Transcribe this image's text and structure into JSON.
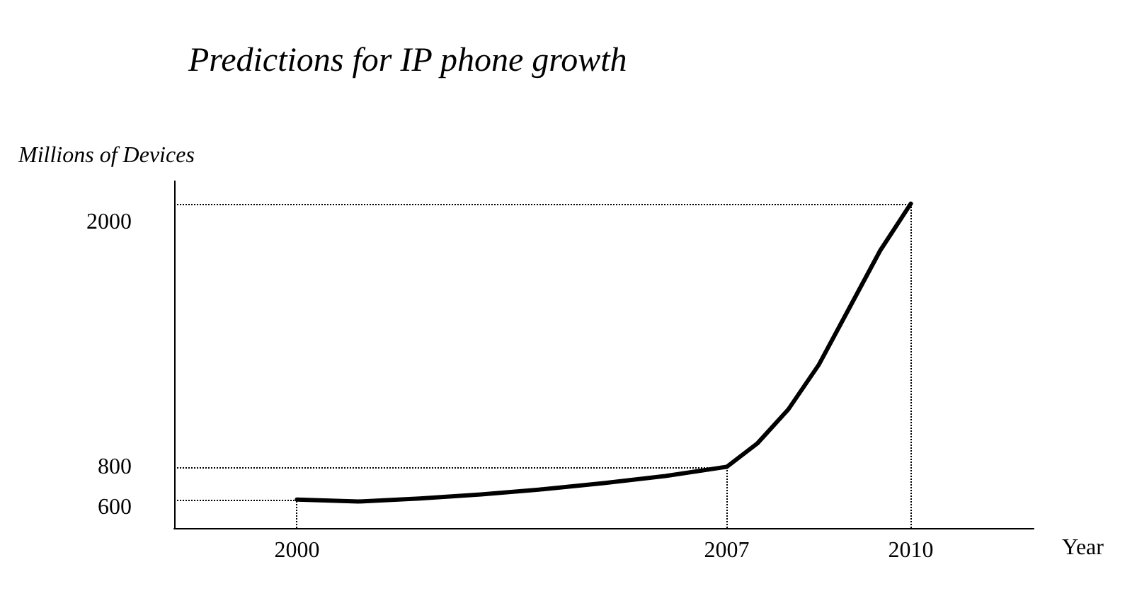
{
  "chart_data": {
    "type": "line",
    "title": "Predictions for IP phone growth",
    "xlabel": "Year",
    "ylabel": "Millions of Devices",
    "x": [
      2000,
      2001,
      2002,
      2003,
      2004,
      2005,
      2006,
      2007,
      2007.5,
      2008,
      2008.5,
      2009,
      2009.5,
      2010
    ],
    "series": [
      {
        "color": "#000000",
        "values": [
          640,
          630,
          645,
          665,
          690,
          720,
          755,
          800,
          915,
          1080,
          1300,
          1580,
          1860,
          2090
        ]
      }
    ],
    "xlim": [
      1998,
      2012
    ],
    "xticks": [
      2000,
      2007,
      2010
    ],
    "ylim": [
      500,
      2200
    ],
    "yticks": [
      600,
      800,
      2000
    ],
    "ref_lines": [
      {
        "axis": "x",
        "value": 2000,
        "line_style": "dotted",
        "color": "#000000"
      },
      {
        "axis": "x",
        "value": 2007,
        "line_style": "dotted",
        "color": "#000000"
      },
      {
        "axis": "x",
        "value": 2010,
        "line_style": "dotted",
        "color": "#000000"
      },
      {
        "axis": "y",
        "value": 640,
        "line_style": "dotted",
        "color": "#000000"
      },
      {
        "axis": "y",
        "value": 800,
        "line_style": "dotted",
        "color": "#000000"
      },
      {
        "axis": "y",
        "value": 2090,
        "line_style": "dotted",
        "color": "#000000"
      }
    ],
    "grid": false,
    "marker": "none",
    "line_style": "solid"
  }
}
